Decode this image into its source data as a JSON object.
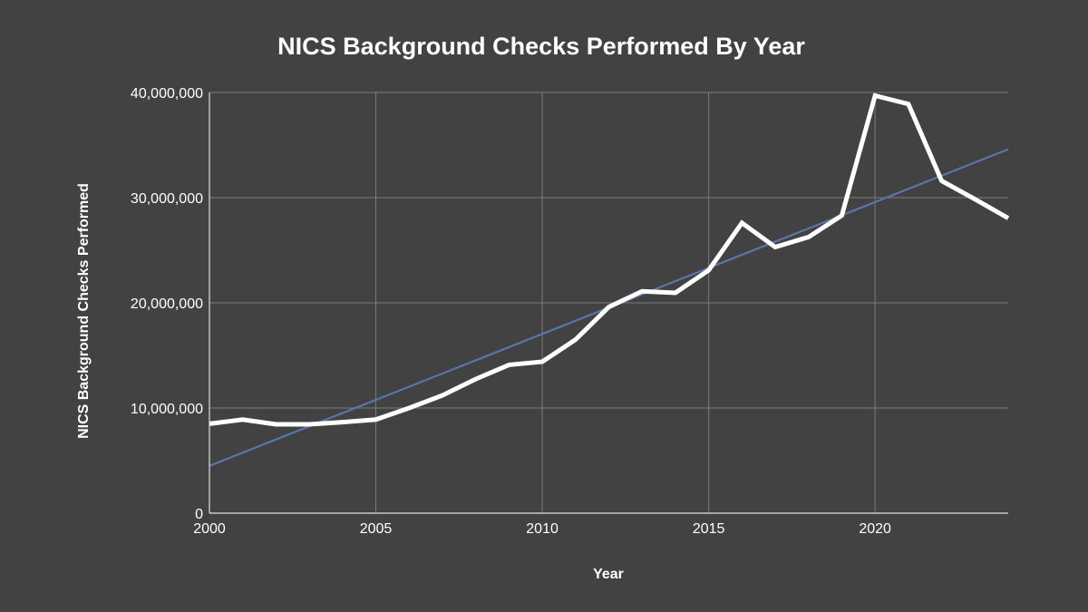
{
  "chart_data": {
    "type": "line",
    "title": "NICS Background Checks Performed By Year",
    "xlabel": "Year",
    "ylabel": "NICS Background Checks Performed",
    "xlim": [
      2000,
      2024
    ],
    "ylim": [
      0,
      40000000
    ],
    "x_ticks": [
      2000,
      2005,
      2010,
      2015,
      2020
    ],
    "x_tick_labels": [
      "2000",
      "2005",
      "2010",
      "2015",
      "2020"
    ],
    "y_ticks": [
      0,
      10000000,
      20000000,
      30000000,
      40000000
    ],
    "y_tick_labels": [
      "0",
      "10,000,000",
      "20,000,000",
      "30,000,000",
      "40,000,000"
    ],
    "grid": true,
    "legend": "none",
    "x": [
      2000,
      2001,
      2002,
      2003,
      2004,
      2005,
      2006,
      2007,
      2008,
      2009,
      2010,
      2011,
      2012,
      2013,
      2014,
      2015,
      2016,
      2017,
      2018,
      2019,
      2020,
      2021,
      2022,
      2023,
      2024
    ],
    "series": [
      {
        "values": [
          8500000,
          8900000,
          8450000,
          8450000,
          8650000,
          8900000,
          10000000,
          11200000,
          12750000,
          14100000,
          14400000,
          16500000,
          19600000,
          21100000,
          20950000,
          23100000,
          27600000,
          25300000,
          26250000,
          28300000,
          39700000,
          38900000,
          31600000,
          29850000,
          28050000
        ],
        "color": "#ffffff"
      }
    ],
    "trendline": {
      "type": "linear",
      "start": [
        2000,
        4500000
      ],
      "end": [
        2024,
        34600000
      ],
      "color": "#5876a8"
    }
  }
}
